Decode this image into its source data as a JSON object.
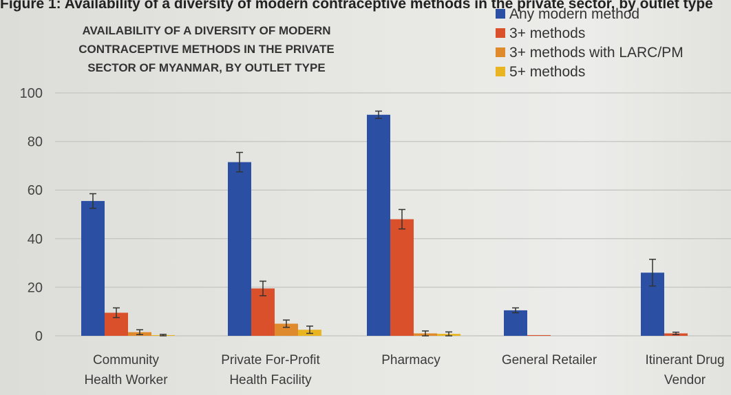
{
  "top_strip_text": "Figure 1: Availability of a diversity of modern contraceptive methods in the private sector, by outlet type",
  "chart_data": {
    "type": "bar",
    "title_lines": [
      "AVAILABILITY OF A DIVERSITY OF MODERN",
      "CONTRACEPTIVE METHODS IN THE PRIVATE",
      "SECTOR OF MYANMAR, BY OUTLET TYPE"
    ],
    "categories": [
      [
        "Community",
        "Health Worker"
      ],
      [
        "Private For-Profit",
        "Health Facility"
      ],
      [
        "Pharmacy"
      ],
      [
        "General Retailer"
      ],
      [
        "Itinerant Drug",
        "Vendor"
      ]
    ],
    "series": [
      {
        "name": "Any modern method",
        "color": "#2b4fa3",
        "values": [
          55.5,
          71.5,
          91,
          10.5,
          26
        ],
        "error": [
          3,
          4,
          1.5,
          1,
          5.5
        ]
      },
      {
        "name": "3+ methods",
        "color": "#d9502a",
        "values": [
          9.5,
          19.5,
          48,
          0.3,
          1
        ],
        "error": [
          2,
          3,
          4,
          0,
          0.5
        ]
      },
      {
        "name": "3+ methods with LARC/PM",
        "color": "#e08a2e",
        "values": [
          1.5,
          5,
          1,
          0,
          0
        ],
        "error": [
          1,
          1.5,
          1,
          0,
          0
        ]
      },
      {
        "name": "5+ methods",
        "color": "#e8b422",
        "values": [
          0.3,
          2.5,
          0.8,
          0,
          0
        ],
        "error": [
          0.3,
          1.5,
          0.8,
          0,
          0
        ]
      }
    ],
    "ylim": [
      0,
      100
    ],
    "yticks": [
      0,
      20,
      40,
      60,
      80,
      100
    ],
    "grid": true,
    "legend_position": "top-right"
  }
}
